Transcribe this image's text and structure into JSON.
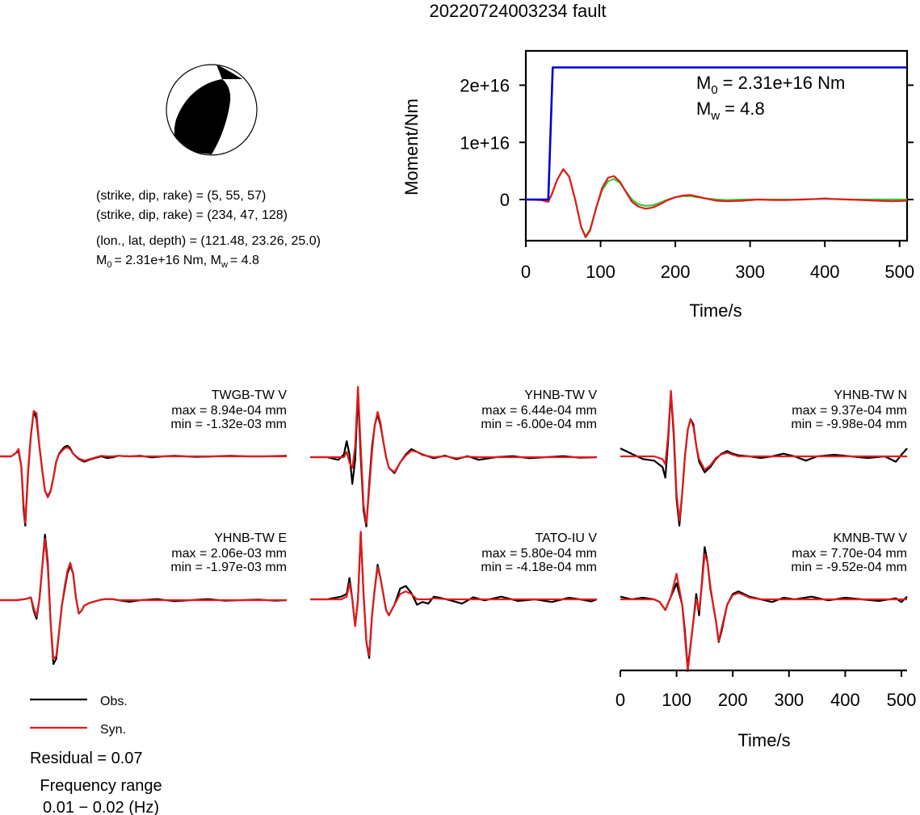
{
  "page_title": "20220724003234 fault",
  "mechanism": {
    "line1": "(strike, dip, rake) = (5, 55, 57)",
    "line2": "(strike, dip, rake) = (234, 47, 128)",
    "line3": "(lon., lat, depth) = (121.48, 23.26, 25.0)",
    "line4_m0": "= 2.31e+16 Nm, M",
    "line4_mw": "= 4.8",
    "M_letter": "M",
    "sub0": "0",
    "subw": "w"
  },
  "moment_plot": {
    "annot_m0": "= 2.31e+16 Nm",
    "annot_mw": "= 4.8"
  },
  "legend": {
    "obs_label": "Obs.",
    "syn_label": "Syn.",
    "residual": "Residual = 0.07",
    "freq_title": "Frequency range",
    "freq_value": "0.01 − 0.02 (Hz)"
  },
  "colors": {
    "observed": "#000000",
    "synthetic": "#e31a1c",
    "moment_cumulative": "#0000cc",
    "moment_rate_a": "#e31a1c",
    "moment_rate_b": "#33cc33"
  },
  "chart_data": [
    {
      "type": "line",
      "xlabel": "Time/s",
      "ylabel": "Moment/Nm",
      "xlim": [
        0,
        510
      ],
      "ylim": [
        -7200000000000000.0,
        2.6e+16
      ],
      "xticks": [
        0,
        100,
        200,
        300,
        400,
        500
      ],
      "yticks": [
        {
          "v": 0,
          "label": "0"
        },
        {
          "v": 1e+16,
          "label": "1e+16"
        },
        {
          "v": 2e+16,
          "label": "2e+16"
        }
      ],
      "grid": false,
      "series": [
        {
          "role": "cumulative",
          "x": [
            0,
            30,
            36,
            510
          ],
          "y": [
            0,
            0,
            2.31e+16,
            2.31e+16
          ]
        },
        {
          "role": "rate-a",
          "x": [
            0,
            20,
            30,
            35,
            42,
            50,
            58,
            66,
            74,
            80,
            86,
            94,
            102,
            110,
            118,
            126,
            134,
            142,
            150,
            160,
            170,
            180,
            190,
            200,
            210,
            220,
            230,
            240,
            255,
            270,
            290,
            310,
            330,
            350,
            370,
            390,
            400,
            410,
            430,
            450,
            470,
            490,
            510
          ],
          "y": [
            0,
            -100000000000000.0,
            -400000000000000.0,
            1000000000000000.0,
            3500000000000000.0,
            5300000000000000.0,
            4000000000000000.0,
            0,
            -4800000000000000.0,
            -6600000000000000.0,
            -5400000000000000.0,
            -1500000000000000.0,
            2000000000000000.0,
            3800000000000000.0,
            4100000000000000.0,
            3100000000000000.0,
            1300000000000000.0,
            -400000000000000.0,
            -1200000000000000.0,
            -1600000000000000.0,
            -1400000000000000.0,
            -800000000000000.0,
            -100000000000000.0,
            400000000000000.0,
            700000000000000.0,
            800000000000000.0,
            500000000000000.0,
            200000000000000.0,
            -200000000000000.0,
            -300000000000000.0,
            -200000000000000.0,
            0,
            -100000000000000.0,
            -100000000000000.0,
            0,
            100000000000000.0,
            200000000000000.0,
            100000000000000.0,
            0,
            -100000000000000.0,
            -200000000000000.0,
            -300000000000000.0,
            -200000000000000.0
          ]
        },
        {
          "role": "rate-b",
          "x": [
            0,
            20,
            30,
            35,
            42,
            50,
            58,
            66,
            74,
            80,
            86,
            94,
            102,
            110,
            118,
            126,
            134,
            142,
            150,
            160,
            170,
            180,
            190,
            200,
            210,
            220,
            230,
            240,
            255,
            270,
            290,
            310,
            330,
            350,
            370,
            390,
            400,
            410,
            430,
            450,
            470,
            490,
            510
          ],
          "y": [
            0,
            -100000000000000.0,
            -300000000000000.0,
            1000000000000000.0,
            3500000000000000.0,
            5300000000000000.0,
            4000000000000000.0,
            0,
            -4800000000000000.0,
            -6400000000000000.0,
            -5200000000000000.0,
            -1500000000000000.0,
            1600000000000000.0,
            3200000000000000.0,
            3600000000000000.0,
            2900000000000000.0,
            1400000000000000.0,
            0,
            -800000000000000.0,
            -1100000000000000.0,
            -1000000000000000.0,
            -500000000000000.0,
            0,
            400000000000000.0,
            600000000000000.0,
            600000000000000.0,
            400000000000000.0,
            200000000000000.0,
            0,
            -100000000000000.0,
            0,
            0,
            0,
            0,
            0,
            100000000000000.0,
            100000000000000.0,
            100000000000000.0,
            0,
            0,
            0,
            0,
            0
          ]
        }
      ]
    },
    {
      "type": "line",
      "panels": [
        {
          "station": "TWGB-TW V",
          "max": "max = 8.94e-04 mm",
          "min": "min = -1.32e-03 mm",
          "x": [
            0,
            10,
            20,
            28,
            33,
            38,
            42,
            45,
            50,
            55,
            60,
            65,
            70,
            75,
            80,
            85,
            90,
            95,
            100,
            105,
            110,
            115,
            120,
            125,
            130,
            140,
            150,
            160,
            170,
            180,
            190,
            200,
            210,
            230,
            250,
            270,
            290,
            310,
            330,
            350,
            380,
            410,
            440,
            470,
            510
          ],
          "obs": [
            0,
            0,
            0,
            0.6,
            1,
            -2,
            -10,
            -13,
            -3,
            4,
            8.5,
            7,
            2,
            -2.5,
            -6.5,
            -7.5,
            -6.5,
            -4,
            -1,
            0.5,
            1.2,
            1.8,
            2,
            1.5,
            0.5,
            -0.5,
            -1,
            -0.6,
            -0.3,
            0,
            -0.3,
            -0.2,
            0.1,
            0,
            0.1,
            -0.2,
            0,
            0.1,
            0,
            -0.1,
            0,
            0.1,
            0,
            0,
            0.1
          ],
          "syn": [
            0,
            0,
            0,
            0.6,
            1.4,
            -2,
            -9,
            -12.5,
            -2.5,
            4,
            8.5,
            8.1,
            2,
            -2.5,
            -6.5,
            -7.7,
            -6.6,
            -4,
            -1,
            0.4,
            1,
            1.5,
            1.7,
            1.3,
            0.5,
            -0.4,
            -0.8,
            -0.5,
            -0.2,
            0.1,
            0,
            0,
            0.1,
            0,
            0,
            0,
            0,
            0,
            0,
            0,
            0,
            0,
            0,
            0,
            0
          ]
        },
        {
          "station": "YHNB-TW V",
          "max": "max = 6.44e-04 mm",
          "min": "min = -6.00e-04 mm",
          "x": [
            0,
            30,
            50,
            60,
            65,
            70,
            75,
            80,
            85,
            90,
            95,
            100,
            105,
            110,
            115,
            120,
            125,
            130,
            135,
            140,
            150,
            160,
            170,
            180,
            190,
            200,
            220,
            240,
            260,
            280,
            300,
            330,
            360,
            390,
            420,
            450,
            480,
            510
          ],
          "obs": [
            0,
            0,
            -0.5,
            0.5,
            3,
            0.5,
            -5,
            -0.5,
            12,
            0,
            -10,
            -13,
            -5,
            2,
            6,
            8,
            6,
            3,
            0,
            -2,
            -3,
            -1,
            0.5,
            1.5,
            1,
            0.5,
            -0.2,
            0.3,
            -0.4,
            0.2,
            -0.5,
            0,
            0.2,
            -0.2,
            0,
            0.2,
            -0.1,
            0
          ],
          "syn": [
            0,
            0,
            0,
            0,
            1,
            -1,
            -2,
            2,
            13.2,
            2,
            -9,
            -12.5,
            -6,
            1,
            6,
            8.5,
            6.5,
            3,
            0,
            -2,
            -2.8,
            -1,
            0.3,
            1.2,
            1,
            0.4,
            0,
            0.2,
            -0.2,
            0.1,
            0,
            0,
            0,
            0,
            0,
            0,
            0,
            0
          ]
        },
        {
          "station": "YHNB-TW N",
          "max": "max = 9.37e-04 mm",
          "min": "min = -9.98e-04 mm",
          "x": [
            0,
            20,
            40,
            60,
            75,
            80,
            85,
            90,
            95,
            100,
            105,
            110,
            115,
            120,
            125,
            130,
            135,
            140,
            150,
            160,
            170,
            180,
            190,
            200,
            210,
            230,
            250,
            270,
            290,
            310,
            330,
            350,
            380,
            410,
            440,
            470,
            490,
            500,
            510
          ],
          "obs": [
            1.5,
            0.5,
            -0.5,
            -0.8,
            -2,
            -4,
            3,
            12,
            4,
            -8,
            -13,
            -7,
            0,
            5,
            7,
            6,
            2,
            -1,
            -3,
            -2,
            -0.5,
            0.5,
            1,
            0.5,
            0.2,
            0,
            -0.3,
            0,
            0.5,
            0,
            -0.8,
            0,
            0.3,
            0,
            -0.3,
            0,
            -1,
            0.3,
            1.5
          ],
          "syn": [
            0,
            0,
            0,
            0,
            -0.5,
            -1.5,
            4,
            12.3,
            5,
            -7,
            -12,
            -7,
            0,
            5,
            7,
            5.5,
            2,
            -0.5,
            -2.5,
            -1.7,
            -0.3,
            0.4,
            0.7,
            0.3,
            0,
            0,
            0,
            0,
            0,
            0,
            0,
            0,
            0,
            0,
            0,
            0,
            0,
            0,
            0
          ]
        },
        {
          "station": "YHNB-TW E",
          "max": "max = 2.06e-03 mm",
          "min": "min = -1.97e-03 mm",
          "x": [
            0,
            30,
            45,
            55,
            60,
            65,
            70,
            75,
            80,
            85,
            90,
            95,
            100,
            105,
            110,
            115,
            120,
            125,
            130,
            135,
            140,
            145,
            150,
            160,
            170,
            180,
            190,
            200,
            210,
            230,
            250,
            280,
            310,
            340,
            370,
            400,
            430,
            460,
            490,
            510
          ],
          "obs": [
            0,
            0,
            0.2,
            0.5,
            -2,
            -3.5,
            0,
            6,
            12.3,
            7,
            -4,
            -12,
            -11,
            -6,
            -1,
            2,
            5,
            6.5,
            5,
            0.5,
            -2.5,
            -2,
            -1,
            -0.5,
            -0.2,
            0.1,
            0.2,
            0.2,
            0,
            -0.3,
            0,
            0.2,
            -0.2,
            0,
            0.2,
            -0.1,
            0,
            0.1,
            -0.1,
            0
          ],
          "syn": [
            0,
            0,
            0.2,
            0.5,
            -1.5,
            -3,
            0,
            6,
            11.5,
            6,
            -4,
            -11,
            -10.5,
            -6,
            -1,
            2.5,
            5.5,
            7,
            5,
            0.5,
            -2.5,
            -2,
            -1,
            -0.5,
            -0.2,
            0.1,
            0.2,
            0.2,
            0,
            0,
            0,
            0,
            0,
            0,
            0,
            0,
            0,
            0,
            0,
            0
          ]
        },
        {
          "station": "TATO-IU V",
          "max": "max = 5.80e-04 mm",
          "min": "min = -4.18e-04 mm",
          "x": [
            0,
            30,
            55,
            65,
            70,
            75,
            80,
            85,
            90,
            95,
            100,
            105,
            110,
            115,
            120,
            125,
            130,
            135,
            140,
            150,
            160,
            170,
            180,
            190,
            200,
            210,
            220,
            230,
            250,
            270,
            290,
            310,
            340,
            370,
            400,
            430,
            460,
            480,
            500,
            510
          ],
          "obs": [
            0,
            0,
            0.5,
            1,
            4,
            0,
            -5,
            0,
            12.5,
            1,
            -8,
            -11,
            -3,
            2,
            6.5,
            4,
            1,
            -2,
            -3,
            -1,
            2,
            2.5,
            1.2,
            -1,
            -0.5,
            -0.8,
            0.5,
            0.3,
            -0.2,
            -0.8,
            0.4,
            -0.2,
            0.5,
            -0.3,
            0,
            -0.5,
            0.3,
            0,
            -0.4,
            0
          ],
          "syn": [
            0,
            0,
            0,
            0.5,
            3,
            0,
            -5,
            0,
            12.7,
            1,
            -8,
            -10.5,
            -3,
            2,
            6,
            4,
            1,
            -2,
            -3,
            -1,
            1,
            1.5,
            1,
            0,
            0,
            0,
            0.2,
            0.1,
            0,
            0,
            0,
            0,
            0,
            0,
            0,
            0,
            0,
            0,
            0,
            0
          ]
        },
        {
          "station": "KMNB-TW V",
          "max": "max = 7.70e-04 mm",
          "min": "min = -9.52e-04 mm",
          "x": [
            0,
            20,
            40,
            60,
            70,
            80,
            90,
            100,
            110,
            115,
            120,
            130,
            135,
            140,
            145,
            150,
            155,
            160,
            165,
            170,
            175,
            180,
            190,
            200,
            210,
            220,
            230,
            250,
            270,
            290,
            310,
            340,
            370,
            400,
            430,
            460,
            490,
            500,
            510
          ],
          "obs": [
            0.5,
            0,
            0.3,
            0,
            -0.5,
            -2,
            0.5,
            3,
            -1,
            -6,
            -13,
            -4,
            1,
            -3,
            3,
            9.8,
            7,
            2,
            -1,
            -4,
            -8,
            -6,
            -1,
            1,
            1.5,
            1,
            0.5,
            0,
            -0.5,
            0.3,
            0,
            0.5,
            -0.2,
            0.3,
            0,
            -0.3,
            0.2,
            -0.5,
            0.5
          ],
          "syn": [
            0,
            0,
            0,
            0,
            -0.5,
            -2,
            0.5,
            4.8,
            -1,
            -7,
            -13.5,
            -4,
            0,
            -2,
            2.5,
            8.5,
            7,
            2.5,
            -1,
            -4,
            -7.8,
            -5.5,
            -1,
            0.8,
            1.2,
            0.8,
            0.3,
            0,
            0,
            0,
            0,
            0,
            0,
            0,
            0,
            0,
            0,
            0,
            0
          ]
        }
      ],
      "xlabel": "Time/s",
      "xlim": [
        0,
        510
      ],
      "xticks": [
        0,
        100,
        200,
        300,
        400,
        500
      ]
    }
  ]
}
